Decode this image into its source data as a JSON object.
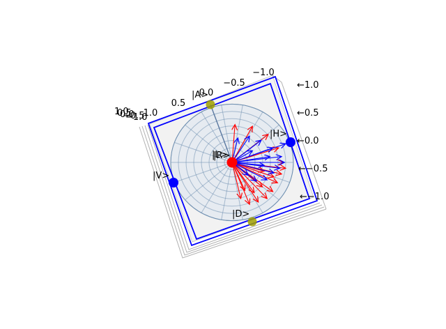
{
  "chart_data": {
    "type": "scatter",
    "title": "",
    "projection": "3d-bloch-sphere",
    "axes": {
      "x_ticks": [
        "−1.0",
        "−0.5",
        "0.0",
        "0.5",
        "1.0"
      ],
      "y_ticks": [
        "1.0",
        "0.5",
        "0.0",
        "−0.5",
        "−1.0"
      ],
      "z_ticks_overlap": [
        "1.0",
        "0.5",
        "0.0",
        "−0.5",
        "−1.0"
      ],
      "range": [
        -1.0,
        1.0
      ],
      "grid": true
    },
    "state_labels": [
      "|A>",
      "|H>",
      "|R>",
      "|L>",
      "|V>",
      "|D>"
    ],
    "points": [
      {
        "name": "|H>",
        "color": "#0000ff",
        "xyz": [
          1,
          0,
          0
        ]
      },
      {
        "name": "|V>",
        "color": "#0000ff",
        "xyz": [
          -1,
          0,
          0
        ]
      },
      {
        "name": "|A>",
        "color": "#a0a000",
        "xyz": [
          0,
          -1,
          0
        ]
      },
      {
        "name": "|D>",
        "color": "#a0a000",
        "xyz": [
          0,
          1,
          0
        ]
      },
      {
        "name": "|R>",
        "color": "#ff0000",
        "xyz": [
          0,
          0,
          1
        ]
      }
    ],
    "vector_colors": {
      "red": "#ff0000",
      "blue": "#0000ff"
    },
    "red_vectors_count": 18,
    "blue_vectors_count": 16
  }
}
